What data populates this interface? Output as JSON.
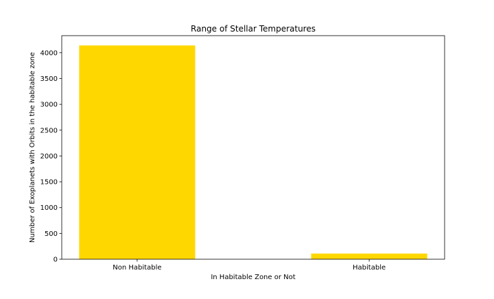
{
  "chart_data": {
    "type": "bar",
    "title": "Range of Stellar Temperatures",
    "xlabel": "In Habitable Zone or Not",
    "ylabel": "Number of Exoplanets with Orbits in the habitable zone",
    "categories": [
      "Non Habitable",
      "Habitable"
    ],
    "values": [
      4140,
      110
    ],
    "ylim": [
      0,
      4330
    ],
    "yticks": [
      0,
      500,
      1000,
      1500,
      2000,
      2500,
      3000,
      3500,
      4000
    ],
    "bar_color": "#ffd700",
    "grid": false,
    "legend": "none"
  }
}
